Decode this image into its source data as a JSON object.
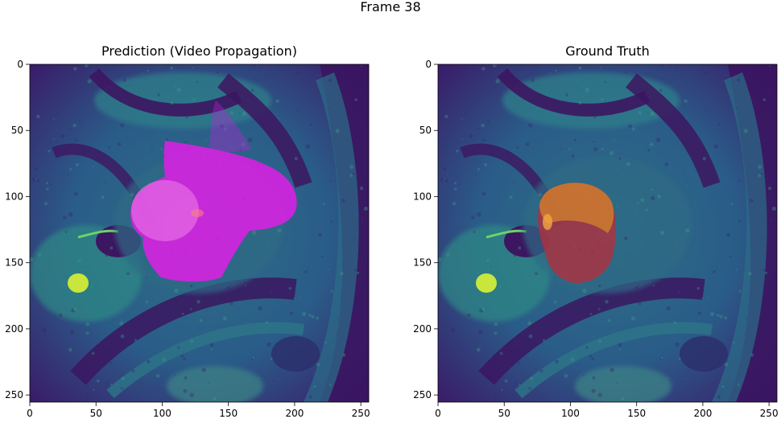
{
  "figure": {
    "suptitle": "Frame 38"
  },
  "panels": [
    {
      "title": "Prediction (Video Propagation)",
      "overlay_color": "#e11ee6",
      "x_ticks": [
        "0",
        "50",
        "100",
        "150",
        "200",
        "250"
      ],
      "y_ticks": [
        "0",
        "50",
        "100",
        "150",
        "200",
        "250"
      ]
    },
    {
      "title": "Ground Truth",
      "overlay_color": "#e0491f",
      "x_ticks": [
        "0",
        "50",
        "100",
        "150",
        "200",
        "250"
      ],
      "y_ticks": [
        "0",
        "50",
        "100",
        "150",
        "200",
        "250"
      ]
    }
  ],
  "colors": {
    "background_dark": "#3e0b5c",
    "tissue_teal": "#2a7f86",
    "tissue_green": "#3d9a7a",
    "bright_spot": "#c8e63b"
  }
}
